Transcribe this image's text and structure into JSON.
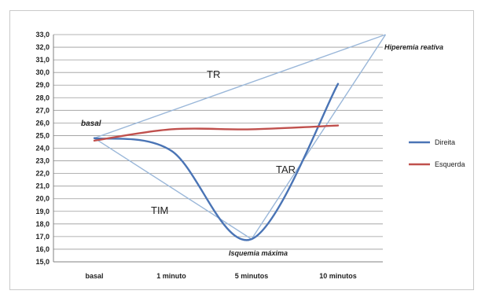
{
  "chart_data": {
    "type": "line",
    "categories": [
      "basal",
      "1 minuto",
      "5 minutos",
      "10 minutos"
    ],
    "ylim": [
      15,
      33
    ],
    "ytick_step": 1,
    "ytick_labels": [
      "15,0",
      "16,0",
      "17,0",
      "18,0",
      "19,0",
      "20,0",
      "21,0",
      "22,0",
      "23,0",
      "24,0",
      "25,0",
      "26,0",
      "27,0",
      "28,0",
      "29,0",
      "30,0",
      "31,0",
      "32,0",
      "33,0"
    ],
    "grid": true,
    "legend_position": "right",
    "series": [
      {
        "name": "Direita",
        "color": "#4a74b5",
        "values": [
          24.8,
          23.8,
          16.8,
          29.1
        ]
      },
      {
        "name": "Esquerda",
        "color": "#c0504d",
        "values": [
          24.6,
          25.5,
          25.5,
          25.8
        ]
      }
    ],
    "triangles": {
      "color": "#9ab7d9",
      "vertices": {
        "basal": {
          "x": 0,
          "y": 24.8
        },
        "hyperemia": {
          "x": 3.55,
          "y": 33.0
        },
        "ischemia": {
          "x": 2.0,
          "y": 16.8
        }
      }
    },
    "annotations": {
      "basal": "basal",
      "hyperemia": "Hiperemia reativa",
      "ischemia": "Isquemia máxima",
      "tr": "TR",
      "tim": "TIM",
      "tar": "TAR"
    }
  }
}
